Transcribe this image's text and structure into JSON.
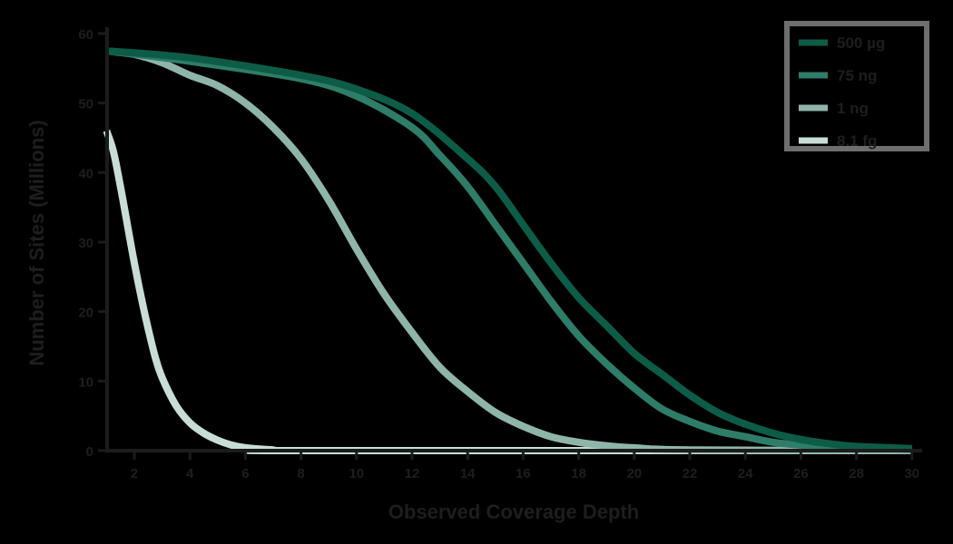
{
  "chart_data": {
    "type": "line",
    "title": "",
    "xlabel": "Observed Coverage Depth",
    "ylabel": "Number of Sites (Millions)",
    "xlim": [
      1,
      30
    ],
    "ylim": [
      0,
      60
    ],
    "x_ticks": [
      2,
      4,
      6,
      8,
      10,
      12,
      14,
      16,
      18,
      20,
      22,
      24,
      26,
      28,
      30
    ],
    "y_ticks": [
      0,
      10,
      20,
      30,
      40,
      50,
      60
    ],
    "grid": false,
    "legend_position": "top-right",
    "series": [
      {
        "name": "500 µg",
        "color": "#0d5c48",
        "points": [
          [
            1,
            57.5
          ],
          [
            4,
            56.5
          ],
          [
            8,
            54
          ],
          [
            10,
            52
          ],
          [
            12,
            48.5
          ],
          [
            14,
            42
          ],
          [
            15,
            38
          ],
          [
            16,
            32.5
          ],
          [
            17,
            27
          ],
          [
            18,
            22
          ],
          [
            19,
            18
          ],
          [
            20,
            14
          ],
          [
            21,
            11
          ],
          [
            22,
            8
          ],
          [
            23,
            5.5
          ],
          [
            24,
            3.8
          ],
          [
            25,
            2.5
          ],
          [
            26,
            1.6
          ],
          [
            27,
            1
          ],
          [
            28,
            0.6
          ],
          [
            30,
            0.3
          ]
        ]
      },
      {
        "name": "75 ng",
        "color": "#2e7d68",
        "points": [
          [
            1,
            57.5
          ],
          [
            4,
            56
          ],
          [
            8,
            53.5
          ],
          [
            10,
            51
          ],
          [
            12,
            46.5
          ],
          [
            13,
            42.5
          ],
          [
            14,
            38
          ],
          [
            15,
            32.5
          ],
          [
            16,
            27
          ],
          [
            17,
            21.5
          ],
          [
            18,
            16.5
          ],
          [
            19,
            12.5
          ],
          [
            20,
            9
          ],
          [
            21,
            6
          ],
          [
            22,
            4.2
          ],
          [
            23,
            2.8
          ],
          [
            24,
            2
          ],
          [
            25,
            1.2
          ],
          [
            26,
            0.8
          ],
          [
            28,
            0.4
          ],
          [
            30,
            0.2
          ]
        ]
      },
      {
        "name": "1 ng",
        "color": "#8fb5aa",
        "points": [
          [
            1,
            57.5
          ],
          [
            2,
            57
          ],
          [
            3,
            55.8
          ],
          [
            4,
            54
          ],
          [
            5,
            52.5
          ],
          [
            6,
            50
          ],
          [
            7,
            46.5
          ],
          [
            8,
            42
          ],
          [
            9,
            36
          ],
          [
            10,
            29
          ],
          [
            11,
            22.5
          ],
          [
            12,
            17
          ],
          [
            13,
            12
          ],
          [
            14,
            8.5
          ],
          [
            15,
            5.5
          ],
          [
            16,
            3.5
          ],
          [
            17,
            2
          ],
          [
            18,
            1.2
          ],
          [
            19,
            0.7
          ],
          [
            20,
            0.4
          ],
          [
            22,
            0.1
          ],
          [
            30,
            0
          ]
        ]
      },
      {
        "name": "8.1 fg",
        "color": "#c8ddd6",
        "points": [
          [
            1,
            46
          ],
          [
            1.25,
            43
          ],
          [
            1.5,
            38
          ],
          [
            1.75,
            32.5
          ],
          [
            2,
            27
          ],
          [
            2.25,
            22
          ],
          [
            2.5,
            17.5
          ],
          [
            2.75,
            13.5
          ],
          [
            3,
            10.5
          ],
          [
            3.5,
            6.5
          ],
          [
            4,
            4
          ],
          [
            4.5,
            2.5
          ],
          [
            5,
            1.5
          ],
          [
            5.5,
            0.8
          ],
          [
            6,
            0.4
          ],
          [
            7,
            0.1
          ],
          [
            8,
            0
          ],
          [
            30,
            0
          ]
        ]
      }
    ]
  },
  "legend": {
    "items": [
      {
        "label": "500 µg",
        "color": "#0d5c48"
      },
      {
        "label": "75 ng",
        "color": "#2e7d68"
      },
      {
        "label": "1 ng",
        "color": "#8fb5aa"
      },
      {
        "label": "8.1 fg",
        "color": "#c8ddd6"
      }
    ]
  },
  "axes": {
    "x_title": "Observed Coverage Depth",
    "y_title": "Number of Sites (Millions)",
    "axis_color": "#1c1c1c",
    "text_color": "#1e1e1e",
    "legend_border_color": "#6e6e6e"
  }
}
